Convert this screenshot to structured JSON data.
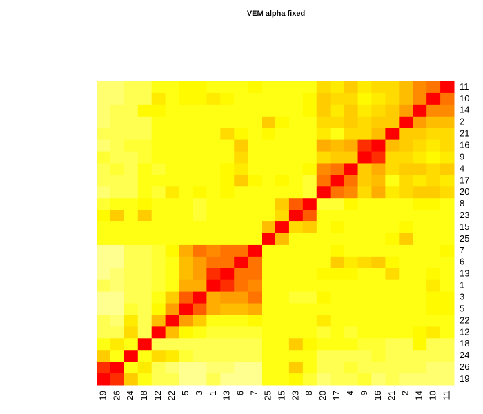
{
  "chart_data": {
    "type": "heatmap",
    "title": "VEM alpha fixed",
    "labels": [
      "19",
      "26",
      "24",
      "18",
      "12",
      "22",
      "5",
      "3",
      "1",
      "13",
      "6",
      "7",
      "25",
      "15",
      "23",
      "8",
      "20",
      "17",
      "4",
      "9",
      "16",
      "21",
      "2",
      "14",
      "10",
      "11"
    ],
    "zlim": [
      0,
      1
    ],
    "colormap": [
      "#ffffcc",
      "#ffff00",
      "#ff9900",
      "#ff0000"
    ],
    "matrix": [
      [
        1,
        0.9,
        0.5,
        0.3,
        0.2,
        0.2,
        0.1,
        0.1,
        0.2,
        0.1,
        0.1,
        0.1,
        0.3,
        0.3,
        0.35,
        0.25,
        0.15,
        0.2,
        0.2,
        0.25,
        0.15,
        0.2,
        0.15,
        0.15,
        0.15,
        0.15
      ],
      [
        0.9,
        1,
        0.3,
        0.4,
        0.2,
        0.15,
        0.1,
        0.1,
        0.15,
        0.15,
        0.1,
        0.1,
        0.3,
        0.3,
        0.5,
        0.3,
        0.2,
        0.2,
        0.25,
        0.2,
        0.2,
        0.2,
        0.2,
        0.2,
        0.15,
        0.15
      ],
      [
        0.5,
        0.3,
        1,
        0.3,
        0.45,
        0.4,
        0.25,
        0.2,
        0.2,
        0.2,
        0.2,
        0.2,
        0.3,
        0.3,
        0.3,
        0.3,
        0.2,
        0.2,
        0.2,
        0.2,
        0.25,
        0.2,
        0.2,
        0.2,
        0.2,
        0.2
      ],
      [
        0.3,
        0.4,
        0.3,
        1,
        0.2,
        0.2,
        0.2,
        0.2,
        0.2,
        0.2,
        0.2,
        0.2,
        0.3,
        0.3,
        0.5,
        0.35,
        0.3,
        0.3,
        0.3,
        0.25,
        0.25,
        0.2,
        0.2,
        0.35,
        0.2,
        0.2
      ],
      [
        0.2,
        0.2,
        0.45,
        0.2,
        1,
        0.55,
        0.35,
        0.3,
        0.25,
        0.25,
        0.25,
        0.25,
        0.3,
        0.3,
        0.3,
        0.3,
        0.25,
        0.3,
        0.25,
        0.3,
        0.3,
        0.3,
        0.3,
        0.35,
        0.4,
        0.3
      ],
      [
        0.2,
        0.15,
        0.4,
        0.2,
        0.55,
        1,
        0.65,
        0.5,
        0.3,
        0.3,
        0.3,
        0.35,
        0.3,
        0.3,
        0.3,
        0.3,
        0.4,
        0.3,
        0.3,
        0.3,
        0.3,
        0.3,
        0.3,
        0.3,
        0.3,
        0.3
      ],
      [
        0.1,
        0.1,
        0.25,
        0.2,
        0.35,
        0.65,
        1,
        0.8,
        0.6,
        0.55,
        0.55,
        0.6,
        0.3,
        0.3,
        0.3,
        0.3,
        0.3,
        0.3,
        0.3,
        0.3,
        0.3,
        0.3,
        0.3,
        0.3,
        0.35,
        0.35
      ],
      [
        0.1,
        0.1,
        0.2,
        0.2,
        0.3,
        0.5,
        0.8,
        1,
        0.6,
        0.65,
        0.65,
        0.75,
        0.3,
        0.3,
        0.25,
        0.25,
        0.35,
        0.3,
        0.3,
        0.3,
        0.3,
        0.3,
        0.3,
        0.3,
        0.35,
        0.35
      ],
      [
        0.2,
        0.15,
        0.2,
        0.2,
        0.25,
        0.3,
        0.6,
        0.6,
        1,
        0.9,
        0.75,
        0.7,
        0.3,
        0.3,
        0.3,
        0.3,
        0.3,
        0.3,
        0.3,
        0.3,
        0.3,
        0.3,
        0.3,
        0.3,
        0.4,
        0.3
      ],
      [
        0.1,
        0.15,
        0.2,
        0.2,
        0.25,
        0.3,
        0.55,
        0.65,
        0.9,
        1,
        0.75,
        0.75,
        0.3,
        0.3,
        0.3,
        0.3,
        0.35,
        0.35,
        0.35,
        0.3,
        0.3,
        0.45,
        0.3,
        0.3,
        0.35,
        0.3
      ],
      [
        0.1,
        0.1,
        0.2,
        0.2,
        0.25,
        0.3,
        0.55,
        0.65,
        0.75,
        0.75,
        1,
        0.75,
        0.3,
        0.3,
        0.3,
        0.3,
        0.3,
        0.5,
        0.4,
        0.45,
        0.5,
        0.35,
        0.3,
        0.3,
        0.3,
        0.3
      ],
      [
        0.1,
        0.1,
        0.2,
        0.2,
        0.25,
        0.35,
        0.6,
        0.75,
        0.7,
        0.75,
        0.75,
        1,
        0.3,
        0.3,
        0.3,
        0.3,
        0.3,
        0.35,
        0.3,
        0.3,
        0.3,
        0.3,
        0.3,
        0.3,
        0.3,
        0.35
      ],
      [
        0.3,
        0.3,
        0.3,
        0.3,
        0.3,
        0.3,
        0.3,
        0.3,
        0.3,
        0.3,
        0.3,
        0.3,
        1,
        0.55,
        0.3,
        0.3,
        0.3,
        0.3,
        0.3,
        0.3,
        0.3,
        0.35,
        0.5,
        0.3,
        0.3,
        0.3
      ],
      [
        0.3,
        0.3,
        0.3,
        0.3,
        0.3,
        0.3,
        0.3,
        0.3,
        0.3,
        0.3,
        0.3,
        0.3,
        0.55,
        1,
        0.45,
        0.5,
        0.3,
        0.35,
        0.3,
        0.3,
        0.3,
        0.3,
        0.35,
        0.3,
        0.3,
        0.3
      ],
      [
        0.35,
        0.5,
        0.3,
        0.5,
        0.3,
        0.3,
        0.3,
        0.25,
        0.3,
        0.3,
        0.3,
        0.3,
        0.3,
        0.45,
        1,
        0.8,
        0.3,
        0.3,
        0.3,
        0.3,
        0.3,
        0.3,
        0.3,
        0.3,
        0.3,
        0.3
      ],
      [
        0.25,
        0.3,
        0.3,
        0.35,
        0.3,
        0.3,
        0.3,
        0.25,
        0.3,
        0.3,
        0.3,
        0.3,
        0.3,
        0.5,
        0.8,
        1,
        0.25,
        0.25,
        0.35,
        0.3,
        0.3,
        0.3,
        0.3,
        0.35,
        0.35,
        0.3
      ],
      [
        0.15,
        0.2,
        0.2,
        0.3,
        0.25,
        0.4,
        0.3,
        0.35,
        0.3,
        0.35,
        0.3,
        0.3,
        0.3,
        0.3,
        0.3,
        0.25,
        1,
        0.75,
        0.7,
        0.45,
        0.6,
        0.4,
        0.45,
        0.5,
        0.5,
        0.45
      ],
      [
        0.2,
        0.2,
        0.2,
        0.3,
        0.3,
        0.3,
        0.3,
        0.3,
        0.3,
        0.35,
        0.5,
        0.35,
        0.3,
        0.35,
        0.3,
        0.25,
        0.75,
        1,
        0.75,
        0.5,
        0.55,
        0.3,
        0.45,
        0.4,
        0.45,
        0.4
      ],
      [
        0.2,
        0.25,
        0.2,
        0.3,
        0.25,
        0.3,
        0.3,
        0.3,
        0.3,
        0.35,
        0.4,
        0.3,
        0.3,
        0.3,
        0.3,
        0.35,
        0.7,
        0.75,
        1,
        0.5,
        0.6,
        0.45,
        0.5,
        0.5,
        0.45,
        0.5
      ],
      [
        0.25,
        0.2,
        0.2,
        0.25,
        0.3,
        0.3,
        0.3,
        0.3,
        0.3,
        0.3,
        0.45,
        0.3,
        0.3,
        0.3,
        0.3,
        0.3,
        0.45,
        0.5,
        0.5,
        1,
        0.9,
        0.45,
        0.45,
        0.4,
        0.35,
        0.4
      ],
      [
        0.15,
        0.2,
        0.25,
        0.25,
        0.3,
        0.3,
        0.3,
        0.3,
        0.3,
        0.3,
        0.5,
        0.3,
        0.3,
        0.3,
        0.3,
        0.3,
        0.6,
        0.55,
        0.6,
        0.9,
        1,
        0.55,
        0.5,
        0.45,
        0.4,
        0.45
      ],
      [
        0.2,
        0.2,
        0.2,
        0.2,
        0.3,
        0.3,
        0.3,
        0.3,
        0.3,
        0.45,
        0.35,
        0.3,
        0.35,
        0.3,
        0.3,
        0.3,
        0.4,
        0.3,
        0.45,
        0.45,
        0.55,
        1,
        0.5,
        0.5,
        0.45,
        0.45
      ],
      [
        0.15,
        0.2,
        0.2,
        0.2,
        0.3,
        0.3,
        0.3,
        0.3,
        0.3,
        0.3,
        0.3,
        0.3,
        0.5,
        0.35,
        0.3,
        0.3,
        0.45,
        0.45,
        0.5,
        0.45,
        0.5,
        0.5,
        1,
        0.65,
        0.55,
        0.55
      ],
      [
        0.15,
        0.2,
        0.2,
        0.35,
        0.35,
        0.3,
        0.3,
        0.3,
        0.3,
        0.3,
        0.3,
        0.3,
        0.3,
        0.3,
        0.3,
        0.35,
        0.5,
        0.4,
        0.5,
        0.4,
        0.45,
        0.5,
        0.65,
        1,
        0.7,
        0.7
      ],
      [
        0.15,
        0.15,
        0.2,
        0.2,
        0.4,
        0.3,
        0.35,
        0.35,
        0.4,
        0.35,
        0.3,
        0.3,
        0.3,
        0.3,
        0.3,
        0.35,
        0.5,
        0.45,
        0.45,
        0.35,
        0.4,
        0.45,
        0.55,
        0.7,
        1,
        0.75
      ],
      [
        0.15,
        0.15,
        0.2,
        0.2,
        0.3,
        0.3,
        0.35,
        0.35,
        0.3,
        0.3,
        0.3,
        0.35,
        0.3,
        0.3,
        0.3,
        0.3,
        0.45,
        0.4,
        0.5,
        0.4,
        0.45,
        0.45,
        0.55,
        0.7,
        0.75,
        1
      ]
    ]
  }
}
